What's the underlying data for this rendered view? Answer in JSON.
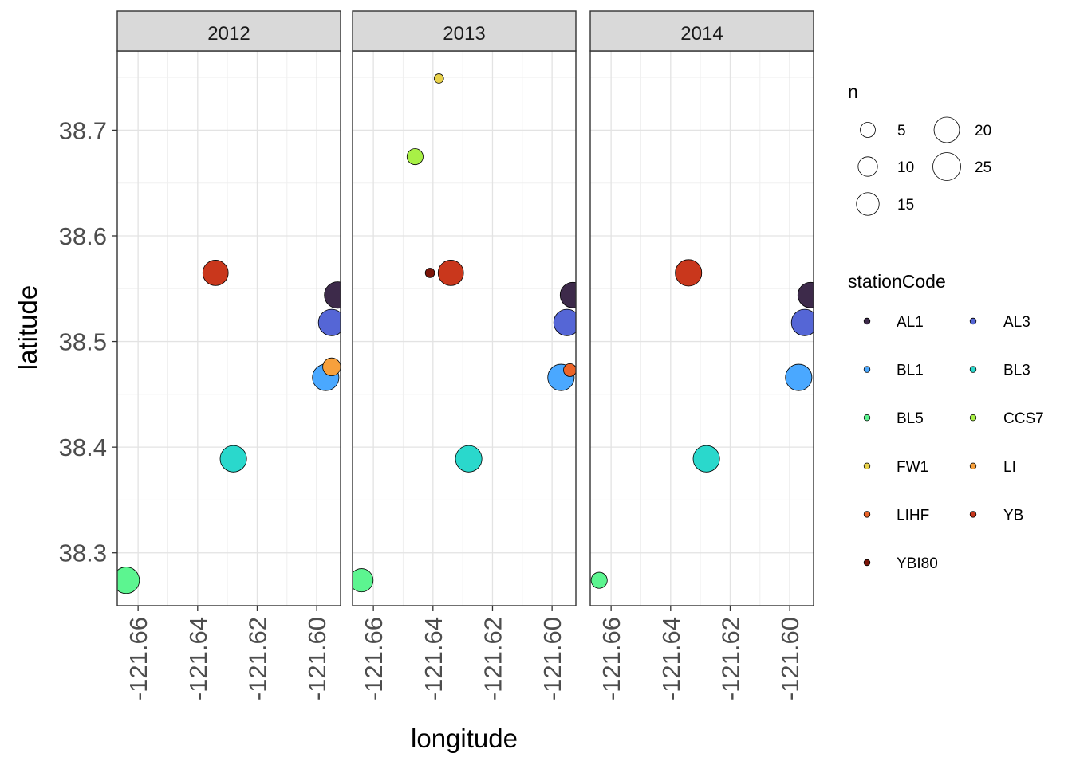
{
  "chart_data": {
    "type": "scatter",
    "facets": [
      "2012",
      "2013",
      "2014"
    ],
    "xlabel": "longitude",
    "ylabel": "latitude",
    "xlim": [
      -121.667,
      -121.592
    ],
    "ylim": [
      38.25,
      38.775
    ],
    "x_ticks": [
      -121.66,
      -121.64,
      -121.62,
      -121.6
    ],
    "x_tick_labels": [
      "-121.66",
      "-121.64",
      "-121.62",
      "-121.60"
    ],
    "y_ticks": [
      38.3,
      38.4,
      38.5,
      38.6,
      38.7
    ],
    "y_tick_labels": [
      "38.3",
      "38.4",
      "38.5",
      "38.6",
      "38.7"
    ],
    "grid": true,
    "legend_position": "right",
    "size_legend": {
      "title": "n",
      "entries": [
        {
          "label": "5",
          "n": 5
        },
        {
          "label": "10",
          "n": 10
        },
        {
          "label": "15",
          "n": 15
        },
        {
          "label": "20",
          "n": 20
        },
        {
          "label": "25",
          "n": 25
        }
      ]
    },
    "color_legend": {
      "title": "stationCode",
      "entries": [
        {
          "label": "AL1",
          "color": "#3d2a4a"
        },
        {
          "label": "AL3",
          "color": "#5566d6"
        },
        {
          "label": "BL1",
          "color": "#4aa8ff"
        },
        {
          "label": "BL3",
          "color": "#2ad8cc"
        },
        {
          "label": "BL5",
          "color": "#5cf590"
        },
        {
          "label": "CCS7",
          "color": "#a8f046"
        },
        {
          "label": "FW1",
          "color": "#e9d24a"
        },
        {
          "label": "LI",
          "color": "#f7a03c"
        },
        {
          "label": "LIHF",
          "color": "#ec6428"
        },
        {
          "label": "YB",
          "color": "#c9371c"
        },
        {
          "label": "YBI80",
          "color": "#7a1408"
        }
      ]
    },
    "series": [
      {
        "facet": "2012",
        "station": "AL1",
        "x": -121.593,
        "y": 38.544,
        "n": 22
      },
      {
        "facet": "2012",
        "station": "AL3",
        "x": -121.595,
        "y": 38.518,
        "n": 22
      },
      {
        "facet": "2012",
        "station": "BL1",
        "x": -121.597,
        "y": 38.466,
        "n": 22
      },
      {
        "facet": "2012",
        "station": "LI",
        "x": -121.595,
        "y": 38.476,
        "n": 8
      },
      {
        "facet": "2012",
        "station": "BL3",
        "x": -121.628,
        "y": 38.389,
        "n": 22
      },
      {
        "facet": "2012",
        "station": "BL5",
        "x": -121.664,
        "y": 38.274,
        "n": 22
      },
      {
        "facet": "2012",
        "station": "YB",
        "x": -121.634,
        "y": 38.565,
        "n": 20
      },
      {
        "facet": "2013",
        "station": "AL1",
        "x": -121.593,
        "y": 38.544,
        "n": 20
      },
      {
        "facet": "2013",
        "station": "AL3",
        "x": -121.595,
        "y": 38.518,
        "n": 22
      },
      {
        "facet": "2013",
        "station": "BL1",
        "x": -121.597,
        "y": 38.466,
        "n": 22
      },
      {
        "facet": "2013",
        "station": "LIHF",
        "x": -121.594,
        "y": 38.473,
        "n": 3
      },
      {
        "facet": "2013",
        "station": "BL3",
        "x": -121.628,
        "y": 38.389,
        "n": 22
      },
      {
        "facet": "2013",
        "station": "BL5",
        "x": -121.664,
        "y": 38.274,
        "n": 16
      },
      {
        "facet": "2013",
        "station": "YB",
        "x": -121.634,
        "y": 38.565,
        "n": 20
      },
      {
        "facet": "2013",
        "station": "YBI80",
        "x": -121.641,
        "y": 38.565,
        "n": 1
      },
      {
        "facet": "2013",
        "station": "CCS7",
        "x": -121.646,
        "y": 38.675,
        "n": 6
      },
      {
        "facet": "2013",
        "station": "FW1",
        "x": -121.638,
        "y": 38.749,
        "n": 1
      },
      {
        "facet": "2014",
        "station": "AL1",
        "x": -121.593,
        "y": 38.544,
        "n": 20
      },
      {
        "facet": "2014",
        "station": "AL3",
        "x": -121.595,
        "y": 38.518,
        "n": 22
      },
      {
        "facet": "2014",
        "station": "BL1",
        "x": -121.597,
        "y": 38.466,
        "n": 22
      },
      {
        "facet": "2014",
        "station": "BL3",
        "x": -121.628,
        "y": 38.389,
        "n": 22
      },
      {
        "facet": "2014",
        "station": "BL5",
        "x": -121.664,
        "y": 38.274,
        "n": 6
      },
      {
        "facet": "2014",
        "station": "YB",
        "x": -121.634,
        "y": 38.565,
        "n": 22
      }
    ]
  }
}
